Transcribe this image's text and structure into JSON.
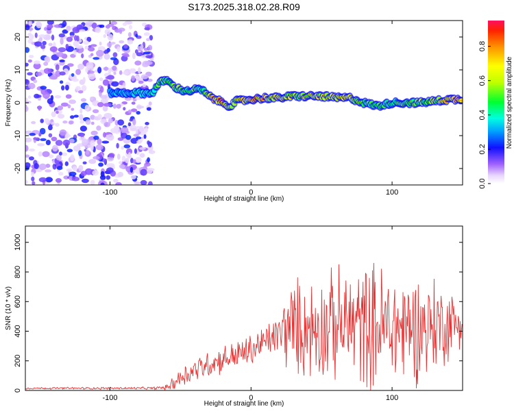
{
  "title": "S173.2025.318.02.28.R09",
  "chart_data": [
    {
      "type": "heatmap",
      "name": "spectrogram",
      "xlabel": "Height of straight line (km)",
      "ylabel": "Frequency (Hz)",
      "xlim": [
        -160,
        150
      ],
      "ylim": [
        -25,
        25
      ],
      "xticks": [
        -100,
        0,
        100
      ],
      "yticks": [
        -20,
        -10,
        0,
        10,
        20
      ],
      "colorbar": {
        "label": "Normalized spectral amplitude",
        "range": [
          0,
          0.95
        ],
        "ticks": [
          0.0,
          0.2,
          0.4,
          0.6,
          0.8
        ],
        "tick_labels": [
          "0.0",
          "0.2",
          "0.4",
          "0.6",
          "0.8"
        ]
      },
      "signal_track": {
        "description_x": [
          -100,
          -90,
          -80,
          -70,
          -65,
          -60,
          -55,
          -50,
          -45,
          -40,
          -35,
          -30,
          -25,
          -20,
          -15,
          -10,
          0,
          10,
          20,
          30,
          40,
          50,
          60,
          70,
          80,
          90,
          100,
          110,
          120,
          130,
          140,
          150
        ],
        "frequency_hz": [
          3,
          3,
          3,
          3,
          6,
          7,
          5,
          4,
          3.5,
          4,
          4,
          2,
          1,
          0,
          -1,
          0.5,
          1,
          1.5,
          1.5,
          2,
          2,
          2,
          1.5,
          1.5,
          0,
          -1,
          0,
          0,
          0,
          0.5,
          1,
          1
        ],
        "amplitude": [
          0.3,
          0.3,
          0.35,
          0.4,
          0.55,
          0.6,
          0.6,
          0.55,
          0.5,
          0.55,
          0.5,
          0.7,
          0.85,
          0.9,
          0.7,
          0.7,
          0.9,
          0.8,
          0.75,
          0.7,
          0.7,
          0.75,
          0.8,
          0.75,
          0.5,
          0.5,
          0.5,
          0.55,
          0.6,
          0.65,
          0.85,
          0.9
        ]
      },
      "noise_region_x": [
        -160,
        -70
      ]
    },
    {
      "type": "line",
      "name": "snr",
      "xlabel": "Height of straight line (km)",
      "ylabel": "SNR (10 * v/v)",
      "xlim": [
        -160,
        150
      ],
      "ylim": [
        0,
        1110
      ],
      "xticks": [
        -100,
        0,
        100
      ],
      "yticks": [
        0,
        200,
        400,
        600,
        800,
        1000
      ],
      "series": [
        {
          "name": "SNR",
          "color": "#e83030",
          "envelope_x": [
            -160,
            -70,
            -60,
            -55,
            -50,
            -40,
            -30,
            -20,
            -10,
            0,
            10,
            20,
            25,
            30,
            40,
            50,
            60,
            70,
            80,
            90,
            100,
            110,
            120,
            130,
            140,
            150
          ],
          "envelope_mean": [
            15,
            15,
            20,
            50,
            90,
            140,
            180,
            210,
            240,
            270,
            330,
            380,
            420,
            430,
            420,
            430,
            440,
            450,
            440,
            430,
            420,
            420,
            430,
            440,
            450,
            460
          ],
          "envelope_spread": [
            8,
            10,
            20,
            60,
            90,
            100,
            110,
            110,
            120,
            130,
            140,
            160,
            330,
            380,
            400,
            420,
            440,
            460,
            500,
            520,
            480,
            460,
            430,
            400,
            300,
            160
          ]
        }
      ]
    }
  ]
}
